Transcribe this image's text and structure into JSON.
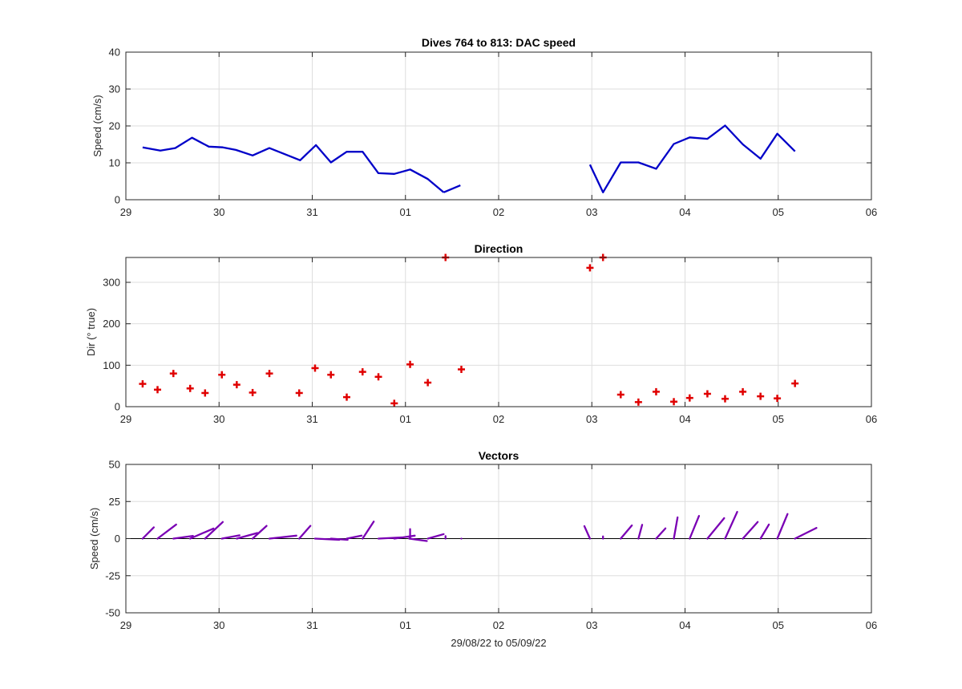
{
  "figure": {
    "xlabel": "29/08/22 to 05/09/22"
  },
  "x_tick_labels": [
    "29",
    "30",
    "31",
    "01",
    "02",
    "03",
    "04",
    "05",
    "06"
  ],
  "colors": {
    "speed": "#0000c8",
    "direction": "#e00000",
    "vectors": "#7a00b4",
    "grid": "#dedede",
    "axis": "#262626"
  },
  "chart_data": [
    {
      "type": "line",
      "title": "Dives 764 to 813: DAC speed",
      "ylabel": "Speed (cm/s)",
      "xlim": [
        0,
        8
      ],
      "ylim": [
        0,
        40
      ],
      "yticks": [
        0,
        10,
        20,
        30,
        40
      ],
      "x_units": "days since 29/08/22 00:00",
      "series": [
        {
          "x": [
            0.18,
            0.37,
            0.53,
            0.71,
            0.89,
            1.04,
            1.18,
            1.36,
            1.54,
            1.87,
            2.04,
            2.2,
            2.37,
            2.54,
            2.71,
            2.88,
            3.05,
            3.24,
            3.41
          ],
          "y": [
            14.2,
            13.3,
            14.0,
            16.8,
            14.4,
            14.2,
            13.5,
            12.0,
            14.0,
            10.7,
            14.8,
            10.1,
            13.0,
            13.0,
            7.2,
            7.0,
            8.2,
            5.6,
            2.0
          ]
        },
        {
          "x": [
            3.41,
            3.59
          ],
          "y": [
            2.0,
            3.9
          ]
        },
        {
          "x": [
            4.98,
            5.12,
            5.31,
            5.5,
            5.69,
            5.88,
            6.05,
            6.24,
            6.43,
            6.62,
            6.81,
            6.99,
            7.18
          ],
          "y": [
            9.5,
            2.0,
            10.1,
            10.1,
            8.4,
            15.1,
            16.9,
            16.5,
            20.1,
            15.0,
            11.1,
            17.9,
            13.1
          ]
        }
      ]
    },
    {
      "type": "scatter",
      "title": "Direction",
      "ylabel": "Dir (° true)",
      "xlim": [
        0,
        8
      ],
      "ylim": [
        0,
        360
      ],
      "yticks": [
        0,
        100,
        200,
        300
      ],
      "x_units": "days since 29/08/22 00:00",
      "points": [
        [
          0.18,
          55
        ],
        [
          0.34,
          41
        ],
        [
          0.51,
          80
        ],
        [
          0.69,
          44
        ],
        [
          0.85,
          33
        ],
        [
          1.03,
          77
        ],
        [
          1.19,
          53
        ],
        [
          1.36,
          34
        ],
        [
          1.54,
          80
        ],
        [
          1.86,
          33
        ],
        [
          2.03,
          93
        ],
        [
          2.2,
          77
        ],
        [
          2.37,
          23
        ],
        [
          2.54,
          84
        ],
        [
          2.71,
          72
        ],
        [
          2.88,
          8
        ],
        [
          3.05,
          102
        ],
        [
          3.24,
          58
        ],
        [
          3.43,
          360
        ],
        [
          3.6,
          90
        ],
        [
          4.98,
          335
        ],
        [
          5.12,
          360
        ],
        [
          5.31,
          29
        ],
        [
          5.5,
          11
        ],
        [
          5.69,
          36
        ],
        [
          5.88,
          12
        ],
        [
          6.05,
          21
        ],
        [
          6.24,
          31
        ],
        [
          6.43,
          19
        ],
        [
          6.62,
          36
        ],
        [
          6.81,
          25
        ],
        [
          6.99,
          20
        ],
        [
          7.18,
          56
        ]
      ]
    },
    {
      "type": "line",
      "title": "Vectors",
      "ylabel": "Speed (cm/s)",
      "xlim": [
        0,
        8
      ],
      "ylim": [
        -50,
        50
      ],
      "yticks": [
        -50,
        -25,
        0,
        25,
        50
      ],
      "x_units": "days since 29/08/22 00:00",
      "vectors": [
        [
          0.18,
          0.3,
          7.6
        ],
        [
          0.34,
          0.54,
          9.5
        ],
        [
          0.51,
          0.72,
          1.8
        ],
        [
          0.69,
          0.94,
          6.8
        ],
        [
          0.85,
          1.04,
          11.2
        ],
        [
          1.03,
          1.22,
          2.2
        ],
        [
          1.19,
          1.41,
          3.8
        ],
        [
          1.36,
          1.51,
          8.6
        ],
        [
          1.54,
          1.83,
          2.0
        ],
        [
          1.86,
          1.98,
          8.6
        ],
        [
          2.03,
          2.29,
          -0.8
        ],
        [
          2.2,
          2.38,
          -0.8
        ],
        [
          2.37,
          2.53,
          2.0
        ],
        [
          2.54,
          2.66,
          11.5
        ],
        [
          2.71,
          2.96,
          0.8
        ],
        [
          2.88,
          3.1,
          2.0
        ],
        [
          3.05,
          3.05,
          6.4
        ],
        [
          3.04,
          3.23,
          -1.6
        ],
        [
          3.24,
          3.41,
          3.0
        ],
        [
          3.43,
          3.43,
          1.7
        ],
        [
          3.6,
          3.6,
          0.0
        ],
        [
          4.98,
          4.92,
          8.4
        ],
        [
          5.12,
          5.12,
          1.5
        ],
        [
          5.31,
          5.43,
          8.9
        ],
        [
          5.5,
          5.54,
          9.3
        ],
        [
          5.69,
          5.79,
          6.9
        ],
        [
          5.88,
          5.92,
          14.3
        ],
        [
          6.05,
          6.15,
          15.3
        ],
        [
          6.24,
          6.42,
          13.8
        ],
        [
          6.43,
          6.56,
          18.0
        ],
        [
          6.62,
          6.78,
          11.2
        ],
        [
          6.81,
          6.9,
          9.5
        ],
        [
          6.99,
          7.1,
          16.6
        ],
        [
          7.18,
          7.41,
          7.2
        ]
      ]
    }
  ]
}
